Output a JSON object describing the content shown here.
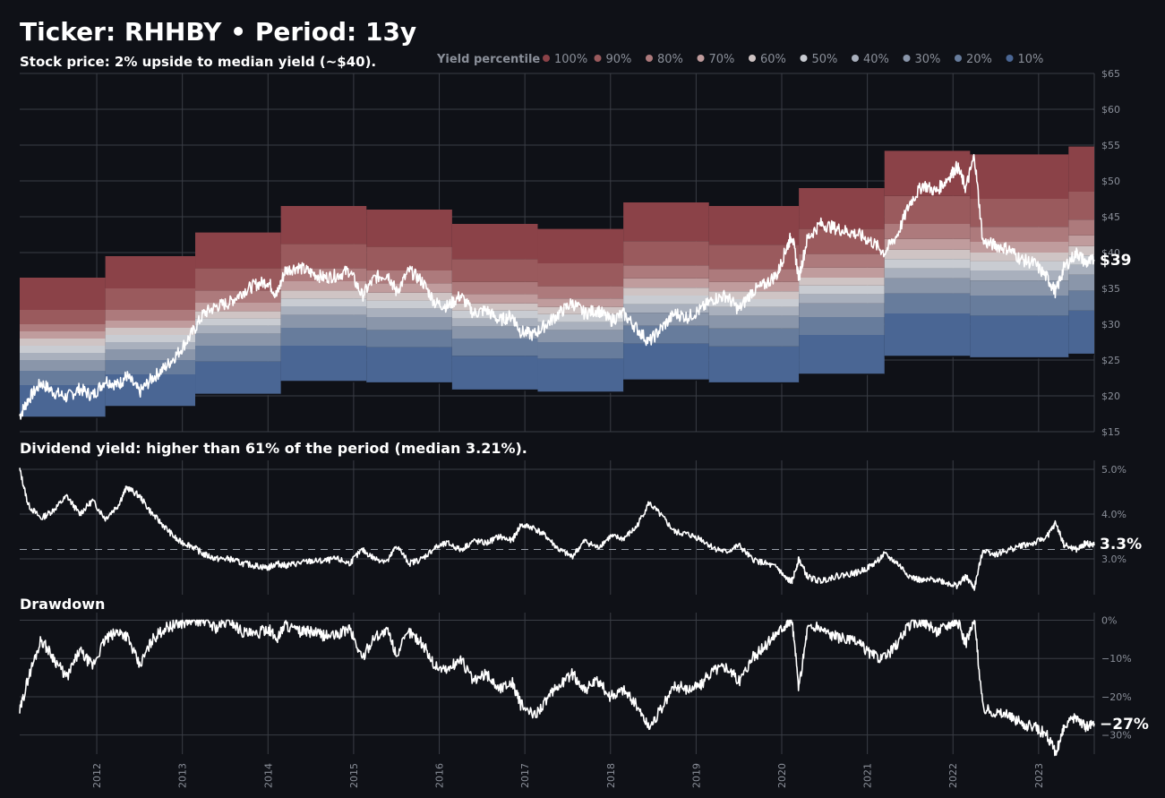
{
  "header": {
    "title": "Ticker: RHHBY  •  Period: 13y",
    "subtitle": "Stock price:  2% upside to median yield (~$40)."
  },
  "legend": {
    "title": "Yield percentile",
    "items": [
      {
        "label": "100%",
        "color": "#8b4248"
      },
      {
        "label": "90%",
        "color": "#9a5a5d"
      },
      {
        "label": "80%",
        "color": "#ad7a7c"
      },
      {
        "label": "70%",
        "color": "#c09c9d"
      },
      {
        "label": "60%",
        "color": "#cfc4c4"
      },
      {
        "label": "50%",
        "color": "#c9ccd2"
      },
      {
        "label": "40%",
        "color": "#a9b0bd"
      },
      {
        "label": "30%",
        "color": "#8a96aa"
      },
      {
        "label": "20%",
        "color": "#677c9c"
      },
      {
        "label": "10%",
        "color": "#4a6694"
      }
    ]
  },
  "colors": {
    "background": "#0f1117",
    "grid": "#3a3d45",
    "line": "#ffffff",
    "tick": "#8a8f99"
  },
  "panels": {
    "yield_title": "Dividend yield: higher than 61% of the period (median 3.21%).",
    "drawdown_title": "Drawdown"
  },
  "chart_data": [
    {
      "type": "area",
      "name": "price",
      "ylim": [
        15,
        65
      ],
      "xlim": [
        2011.1,
        2023.65
      ],
      "yticks": [
        "$15",
        "$20",
        "$25",
        "$30",
        "$35",
        "$40",
        "$45",
        "$50",
        "$55",
        "$60",
        "$65"
      ],
      "ytick_values": [
        15,
        20,
        25,
        30,
        35,
        40,
        45,
        50,
        55,
        60,
        65
      ],
      "end_label": "$39",
      "band_note": "price levels implied by yield percentiles for each dividend year",
      "bands": [
        {
          "x0": 2011.1,
          "x1": 2012.1,
          "levels": [
            17.0,
            21.5,
            23.5,
            25.0,
            26.0,
            27.0,
            28.0,
            29.0,
            30.0,
            32.0,
            36.5
          ]
        },
        {
          "x0": 2012.1,
          "x1": 2013.15,
          "levels": [
            18.5,
            23.0,
            25.0,
            26.5,
            27.5,
            28.5,
            29.5,
            30.5,
            32.0,
            35.0,
            39.5
          ]
        },
        {
          "x0": 2013.15,
          "x1": 2014.15,
          "levels": [
            20.2,
            24.8,
            27.0,
            28.7,
            29.8,
            30.8,
            31.8,
            33.0,
            34.7,
            37.8,
            42.8
          ]
        },
        {
          "x0": 2014.15,
          "x1": 2015.15,
          "levels": [
            22.0,
            27.0,
            29.5,
            31.3,
            32.5,
            33.6,
            34.7,
            36.0,
            37.8,
            41.2,
            46.5
          ]
        },
        {
          "x0": 2015.15,
          "x1": 2016.15,
          "levels": [
            21.8,
            26.8,
            29.2,
            31.0,
            32.2,
            33.3,
            34.4,
            35.7,
            37.5,
            40.8,
            46.0
          ]
        },
        {
          "x0": 2016.15,
          "x1": 2017.15,
          "levels": [
            20.8,
            25.6,
            28.0,
            29.7,
            30.8,
            31.9,
            32.9,
            34.2,
            35.9,
            39.1,
            44.0
          ]
        },
        {
          "x0": 2017.15,
          "x1": 2018.15,
          "levels": [
            20.5,
            25.2,
            27.5,
            29.2,
            30.3,
            31.4,
            32.4,
            33.6,
            35.3,
            38.5,
            43.3
          ]
        },
        {
          "x0": 2018.15,
          "x1": 2019.15,
          "levels": [
            22.2,
            27.3,
            29.8,
            31.6,
            32.8,
            34.0,
            35.1,
            36.4,
            38.2,
            41.6,
            47.0
          ]
        },
        {
          "x0": 2019.15,
          "x1": 2020.2,
          "levels": [
            21.8,
            26.9,
            29.4,
            31.2,
            32.4,
            33.5,
            34.6,
            35.9,
            37.7,
            41.1,
            46.5
          ]
        },
        {
          "x0": 2020.2,
          "x1": 2021.2,
          "levels": [
            23.0,
            28.5,
            31.0,
            32.9,
            34.2,
            35.4,
            36.5,
            37.9,
            39.8,
            43.3,
            49.0
          ]
        },
        {
          "x0": 2021.2,
          "x1": 2022.2,
          "levels": [
            25.5,
            31.5,
            34.3,
            36.4,
            37.8,
            39.1,
            40.4,
            41.9,
            44.0,
            47.9,
            54.2
          ]
        },
        {
          "x0": 2022.2,
          "x1": 2023.35,
          "levels": [
            25.3,
            31.2,
            34.0,
            36.1,
            37.5,
            38.8,
            40.0,
            41.5,
            43.6,
            47.5,
            53.7
          ]
        },
        {
          "x0": 2023.35,
          "x1": 2023.65,
          "levels": [
            25.8,
            31.9,
            34.7,
            36.9,
            38.3,
            39.6,
            40.9,
            42.4,
            44.6,
            48.5,
            54.8
          ]
        }
      ],
      "series": [
        {
          "x": [
            2011.1,
            2011.2,
            2011.35,
            2011.5,
            2011.65,
            2011.8,
            2011.95,
            2012.1,
            2012.25,
            2012.35,
            2012.5,
            2012.65,
            2012.8,
            2012.95,
            2013.1,
            2013.25,
            2013.4,
            2013.55,
            2013.7,
            2013.85,
            2014.0,
            2014.1,
            2014.2,
            2014.35,
            2014.5,
            2014.65,
            2014.8,
            2014.95,
            2015.1,
            2015.25,
            2015.4,
            2015.5,
            2015.65,
            2015.8,
            2015.95,
            2016.1,
            2016.25,
            2016.4,
            2016.55,
            2016.7,
            2016.85,
            2016.95,
            2017.1,
            2017.25,
            2017.4,
            2017.55,
            2017.7,
            2017.85,
            2018.0,
            2018.15,
            2018.3,
            2018.45,
            2018.6,
            2018.75,
            2018.9,
            2019.05,
            2019.2,
            2019.35,
            2019.5,
            2019.65,
            2019.8,
            2019.95,
            2020.05,
            2020.12,
            2020.2,
            2020.3,
            2020.45,
            2020.6,
            2020.75,
            2020.9,
            2021.05,
            2021.2,
            2021.35,
            2021.5,
            2021.65,
            2021.8,
            2021.95,
            2022.05,
            2022.15,
            2022.25,
            2022.35,
            2022.5,
            2022.65,
            2022.8,
            2022.95,
            2023.1,
            2023.2,
            2023.3,
            2023.45,
            2023.55,
            2023.65
          ],
          "y": [
            17.2,
            19.5,
            21.8,
            20.5,
            19.8,
            21.0,
            20.0,
            22.2,
            21.5,
            22.8,
            20.5,
            22.5,
            24.0,
            26.0,
            28.5,
            31.5,
            32.5,
            33.0,
            34.5,
            35.5,
            36.0,
            34.0,
            37.5,
            38.0,
            37.2,
            36.5,
            36.8,
            37.5,
            34.0,
            36.5,
            37.0,
            34.5,
            37.5,
            36.0,
            33.0,
            32.5,
            34.0,
            31.5,
            32.0,
            30.5,
            31.2,
            29.0,
            28.5,
            30.0,
            31.5,
            33.0,
            31.5,
            32.0,
            30.5,
            31.5,
            29.5,
            27.5,
            29.5,
            31.5,
            31.0,
            32.0,
            33.5,
            34.0,
            32.0,
            34.5,
            35.5,
            37.0,
            40.5,
            42.5,
            36.5,
            42.0,
            44.0,
            43.5,
            43.0,
            42.5,
            41.5,
            40.0,
            42.5,
            47.0,
            49.5,
            48.5,
            50.5,
            52.0,
            49.0,
            53.5,
            41.5,
            41.0,
            40.5,
            39.0,
            38.5,
            36.5,
            34.5,
            38.0,
            40.0,
            38.5,
            39.0
          ]
        }
      ]
    },
    {
      "type": "line",
      "name": "dividend_yield",
      "ylim": [
        2.2,
        5.2
      ],
      "yticks": [
        "3.0%",
        "4.0%",
        "5.0%"
      ],
      "ytick_values": [
        3.0,
        4.0,
        5.0
      ],
      "median": 3.21,
      "end_label": "3.3%",
      "series": [
        {
          "x": [
            2011.1,
            2011.2,
            2011.35,
            2011.5,
            2011.65,
            2011.8,
            2011.95,
            2012.1,
            2012.25,
            2012.35,
            2012.5,
            2012.65,
            2012.8,
            2012.95,
            2013.1,
            2013.25,
            2013.4,
            2013.55,
            2013.7,
            2013.85,
            2014.0,
            2014.1,
            2014.2,
            2014.35,
            2014.5,
            2014.65,
            2014.8,
            2014.95,
            2015.1,
            2015.25,
            2015.4,
            2015.5,
            2015.65,
            2015.8,
            2015.95,
            2016.1,
            2016.25,
            2016.4,
            2016.55,
            2016.7,
            2016.85,
            2016.95,
            2017.1,
            2017.25,
            2017.4,
            2017.55,
            2017.7,
            2017.85,
            2018.0,
            2018.15,
            2018.3,
            2018.45,
            2018.6,
            2018.75,
            2018.9,
            2019.05,
            2019.2,
            2019.35,
            2019.5,
            2019.65,
            2019.8,
            2019.95,
            2020.05,
            2020.12,
            2020.2,
            2020.3,
            2020.45,
            2020.6,
            2020.75,
            2020.9,
            2021.05,
            2021.2,
            2021.35,
            2021.5,
            2021.65,
            2021.8,
            2021.95,
            2022.05,
            2022.15,
            2022.25,
            2022.35,
            2022.5,
            2022.65,
            2022.8,
            2022.95,
            2023.1,
            2023.2,
            2023.3,
            2023.45,
            2023.55,
            2023.65
          ],
          "y": [
            5.0,
            4.2,
            3.9,
            4.1,
            4.4,
            4.0,
            4.3,
            3.9,
            4.2,
            4.6,
            4.4,
            4.0,
            3.7,
            3.4,
            3.3,
            3.1,
            3.0,
            3.0,
            2.9,
            2.85,
            2.8,
            2.9,
            2.85,
            2.9,
            2.95,
            2.95,
            3.0,
            2.9,
            3.2,
            3.0,
            2.95,
            3.3,
            2.9,
            3.0,
            3.25,
            3.35,
            3.2,
            3.4,
            3.35,
            3.5,
            3.4,
            3.75,
            3.7,
            3.5,
            3.2,
            3.05,
            3.4,
            3.25,
            3.5,
            3.45,
            3.7,
            4.25,
            3.95,
            3.6,
            3.55,
            3.45,
            3.25,
            3.15,
            3.3,
            3.0,
            2.9,
            2.8,
            2.55,
            2.5,
            3.0,
            2.6,
            2.5,
            2.6,
            2.65,
            2.7,
            2.85,
            3.1,
            2.9,
            2.6,
            2.5,
            2.55,
            2.45,
            2.4,
            2.6,
            2.35,
            3.2,
            3.1,
            3.2,
            3.3,
            3.35,
            3.5,
            3.8,
            3.3,
            3.2,
            3.35,
            3.3
          ]
        }
      ]
    },
    {
      "type": "line",
      "name": "drawdown",
      "ylim": [
        -35,
        2
      ],
      "yticks": [
        "0%",
        "−10%",
        "−20%",
        "−30%"
      ],
      "ytick_values": [
        0,
        -10,
        -20,
        -30
      ],
      "end_label": "−27%",
      "series": [
        {
          "x": [
            2011.1,
            2011.2,
            2011.35,
            2011.5,
            2011.65,
            2011.8,
            2011.95,
            2012.1,
            2012.25,
            2012.35,
            2012.5,
            2012.65,
            2012.8,
            2012.95,
            2013.1,
            2013.25,
            2013.4,
            2013.55,
            2013.7,
            2013.85,
            2014.0,
            2014.1,
            2014.2,
            2014.35,
            2014.5,
            2014.65,
            2014.8,
            2014.95,
            2015.1,
            2015.25,
            2015.4,
            2015.5,
            2015.65,
            2015.8,
            2015.95,
            2016.1,
            2016.25,
            2016.4,
            2016.55,
            2016.7,
            2016.85,
            2016.95,
            2017.1,
            2017.25,
            2017.4,
            2017.55,
            2017.7,
            2017.85,
            2018.0,
            2018.15,
            2018.3,
            2018.45,
            2018.6,
            2018.75,
            2018.9,
            2019.05,
            2019.2,
            2019.35,
            2019.5,
            2019.65,
            2019.8,
            2019.95,
            2020.05,
            2020.12,
            2020.2,
            2020.3,
            2020.45,
            2020.6,
            2020.75,
            2020.9,
            2021.05,
            2021.2,
            2021.35,
            2021.5,
            2021.65,
            2021.8,
            2021.95,
            2022.05,
            2022.15,
            2022.25,
            2022.35,
            2022.5,
            2022.65,
            2022.8,
            2022.95,
            2023.1,
            2023.2,
            2023.3,
            2023.45,
            2023.55,
            2023.65
          ],
          "y": [
            -24,
            -15,
            -5,
            -10,
            -15,
            -8,
            -12,
            -5,
            -3,
            -4,
            -12,
            -5,
            -2,
            -1,
            0,
            0,
            -2,
            0,
            -3,
            -4,
            -2,
            -5,
            -1,
            -3,
            -3,
            -4,
            -4,
            -2,
            -10,
            -4,
            -3,
            -9,
            -3,
            -6,
            -12,
            -13,
            -10,
            -16,
            -14,
            -18,
            -16,
            -22,
            -25,
            -21,
            -17,
            -14,
            -18,
            -16,
            -20,
            -18,
            -22,
            -28,
            -23,
            -17,
            -18,
            -17,
            -13,
            -12,
            -16,
            -10,
            -7,
            -3,
            -1,
            0,
            -18,
            -2,
            -2,
            -4,
            -5,
            -6,
            -9,
            -10,
            -6,
            -1,
            0,
            -3,
            -1,
            0,
            -6,
            0,
            -23,
            -24,
            -25,
            -27,
            -28,
            -30,
            -35,
            -28,
            -25,
            -28,
            -27
          ]
        }
      ]
    }
  ],
  "xaxis": {
    "ticks": [
      "2012",
      "2013",
      "2014",
      "2015",
      "2016",
      "2017",
      "2018",
      "2019",
      "2020",
      "2021",
      "2022",
      "2023"
    ],
    "tick_values": [
      2012,
      2013,
      2014,
      2015,
      2016,
      2017,
      2018,
      2019,
      2020,
      2021,
      2022,
      2023
    ]
  }
}
